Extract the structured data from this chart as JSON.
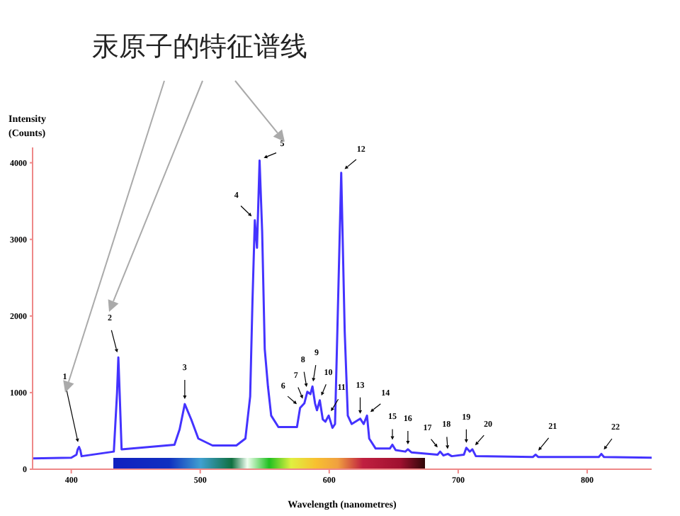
{
  "chart_data": {
    "type": "line",
    "title": "汞原子的特征谱线",
    "xlabel": "Wavelength (nanometres)",
    "ylabel": "Intensity (Counts)",
    "xlim": [
      370,
      850
    ],
    "ylim": [
      0,
      4200
    ],
    "xticks": [
      400,
      500,
      600,
      700,
      800
    ],
    "yticks": [
      0,
      1000,
      2000,
      3000,
      4000
    ],
    "marker": "none",
    "line_style": "solid",
    "series": [
      {
        "color": "#4433ff",
        "x": [
          370,
          400,
          404,
          405,
          406,
          407,
          408,
          433,
          435.5,
          436.5,
          437.5,
          439,
          480,
          484,
          488,
          493,
          498.5,
          509.5,
          528,
          535,
          538.7,
          540.5,
          542.3,
          544,
          546,
          548,
          550,
          552.5,
          555,
          560.6,
          575,
          577.4,
          580.7,
          583,
          585.4,
          587,
          589,
          590.5,
          592.7,
          595,
          597,
          599.6,
          602.5,
          604.5,
          606.3,
          609.3,
          612,
          614.4,
          617.4,
          624,
          626.7,
          629.3,
          631,
          636,
          647,
          649,
          651.5,
          659,
          661,
          663.7,
          684,
          686,
          688.5,
          692,
          695,
          704.4,
          706.3,
          709,
          711,
          713.7,
          758,
          760,
          762,
          809,
          811,
          813,
          850
        ],
        "values": [
          140,
          150,
          190,
          260,
          290,
          250,
          170,
          230,
          1000,
          1460,
          1000,
          260,
          320,
          520,
          850,
          650,
          400,
          310,
          310,
          400,
          950,
          2200,
          3250,
          2890,
          4030,
          3100,
          1570,
          1080,
          700,
          550,
          550,
          800,
          860,
          1010,
          980,
          1080,
          860,
          770,
          900,
          650,
          620,
          700,
          540,
          590,
          1800,
          3870,
          1800,
          700,
          590,
          660,
          590,
          700,
          400,
          270,
          270,
          320,
          250,
          230,
          260,
          220,
          190,
          230,
          180,
          200,
          170,
          190,
          280,
          230,
          260,
          170,
          160,
          190,
          160,
          160,
          200,
          160,
          150
        ]
      }
    ],
    "annotations": [
      {
        "text": "1",
        "x": 406,
        "y": 290
      },
      {
        "text": "2",
        "x": 436.5,
        "y": 1460
      },
      {
        "text": "3",
        "x": 488,
        "y": 850
      },
      {
        "text": "4",
        "x": 542.3,
        "y": 3250
      },
      {
        "text": "5",
        "x": 546,
        "y": 4030
      },
      {
        "text": "6",
        "x": 577.4,
        "y": 800
      },
      {
        "text": "7",
        "x": 580.7,
        "y": 860
      },
      {
        "text": "8",
        "x": 583,
        "y": 1010
      },
      {
        "text": "9",
        "x": 587,
        "y": 1080
      },
      {
        "text": "10",
        "x": 592.7,
        "y": 900
      },
      {
        "text": "11",
        "x": 599.6,
        "y": 700
      },
      {
        "text": "12",
        "x": 609.3,
        "y": 3870
      },
      {
        "text": "13",
        "x": 624,
        "y": 660
      },
      {
        "text": "14",
        "x": 629.3,
        "y": 700
      },
      {
        "text": "15",
        "x": 649,
        "y": 320
      },
      {
        "text": "16",
        "x": 661,
        "y": 260
      },
      {
        "text": "17",
        "x": 686,
        "y": 230
      },
      {
        "text": "18",
        "x": 692,
        "y": 200
      },
      {
        "text": "19",
        "x": 706.3,
        "y": 280
      },
      {
        "text": "20",
        "x": 711,
        "y": 260
      },
      {
        "text": "21",
        "x": 760,
        "y": 190
      },
      {
        "text": "22",
        "x": 811,
        "y": 200
      }
    ]
  }
}
